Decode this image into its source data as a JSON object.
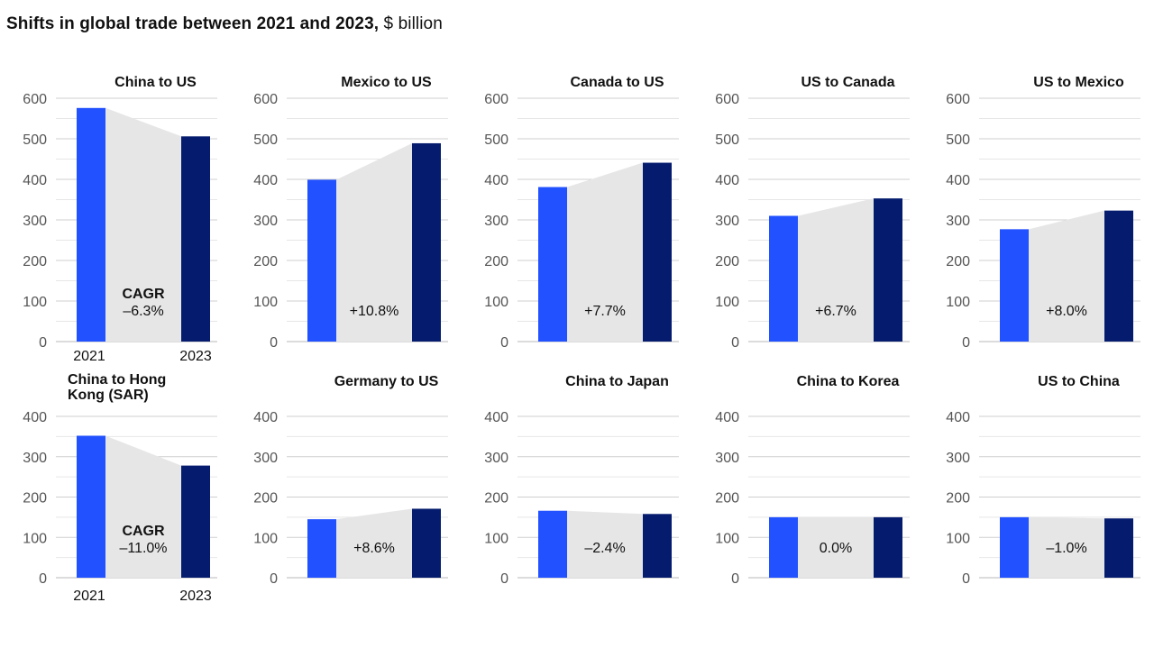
{
  "title": {
    "main": "Shifts in global trade between 2021 and 2023,",
    "unit": "$ billion"
  },
  "colors": {
    "bar_2021": "#2251ff",
    "bar_2023": "#051c6e",
    "fill": "#e6e6e6",
    "grid": "#d0d0d0",
    "tick_text": "#555555"
  },
  "chart_data": [
    {
      "type": "bar",
      "title": "China to US",
      "categories": [
        "2021",
        "2023"
      ],
      "values": [
        576,
        506
      ],
      "ylim": [
        0,
        600
      ],
      "yticks": [
        0,
        100,
        200,
        300,
        400,
        500,
        600
      ],
      "cagr_label": "CAGR",
      "cagr": "–6.3%",
      "show_xlabels": true
    },
    {
      "type": "bar",
      "title": "Mexico to US",
      "categories": [
        "2021",
        "2023"
      ],
      "values": [
        399,
        489
      ],
      "ylim": [
        0,
        600
      ],
      "yticks": [
        0,
        100,
        200,
        300,
        400,
        500,
        600
      ],
      "cagr": "+10.8%"
    },
    {
      "type": "bar",
      "title": "Canada to US",
      "categories": [
        "2021",
        "2023"
      ],
      "values": [
        381,
        441
      ],
      "ylim": [
        0,
        600
      ],
      "yticks": [
        0,
        100,
        200,
        300,
        400,
        500,
        600
      ],
      "cagr": "+7.7%"
    },
    {
      "type": "bar",
      "title": "US to Canada",
      "categories": [
        "2021",
        "2023"
      ],
      "values": [
        310,
        353
      ],
      "ylim": [
        0,
        600
      ],
      "yticks": [
        0,
        100,
        200,
        300,
        400,
        500,
        600
      ],
      "cagr": "+6.7%"
    },
    {
      "type": "bar",
      "title": "US to Mexico",
      "categories": [
        "2021",
        "2023"
      ],
      "values": [
        277,
        323
      ],
      "ylim": [
        0,
        600
      ],
      "yticks": [
        0,
        100,
        200,
        300,
        400,
        500,
        600
      ],
      "cagr": "+8.0%"
    },
    {
      "type": "bar",
      "title": "China to Hong Kong (SAR)",
      "title_lines": [
        "China to Hong",
        "Kong (SAR)"
      ],
      "categories": [
        "2021",
        "2023"
      ],
      "values": [
        352,
        278
      ],
      "ylim": [
        0,
        400
      ],
      "yticks": [
        0,
        100,
        200,
        300,
        400
      ],
      "cagr_label": "CAGR",
      "cagr": "–11.0%",
      "show_xlabels": true
    },
    {
      "type": "bar",
      "title": "Germany to US",
      "categories": [
        "2021",
        "2023"
      ],
      "values": [
        145,
        171
      ],
      "ylim": [
        0,
        400
      ],
      "yticks": [
        0,
        100,
        200,
        300,
        400
      ],
      "cagr": "+8.6%"
    },
    {
      "type": "bar",
      "title": "China to Japan",
      "categories": [
        "2021",
        "2023"
      ],
      "values": [
        166,
        158
      ],
      "ylim": [
        0,
        400
      ],
      "yticks": [
        0,
        100,
        200,
        300,
        400
      ],
      "cagr": "–2.4%"
    },
    {
      "type": "bar",
      "title": "China to Korea",
      "categories": [
        "2021",
        "2023"
      ],
      "values": [
        150,
        150
      ],
      "ylim": [
        0,
        400
      ],
      "yticks": [
        0,
        100,
        200,
        300,
        400
      ],
      "cagr": "0.0%"
    },
    {
      "type": "bar",
      "title": "US to China",
      "categories": [
        "2021",
        "2023"
      ],
      "values": [
        150,
        147
      ],
      "ylim": [
        0,
        400
      ],
      "yticks": [
        0,
        100,
        200,
        300,
        400
      ],
      "cagr": "–1.0%"
    }
  ]
}
